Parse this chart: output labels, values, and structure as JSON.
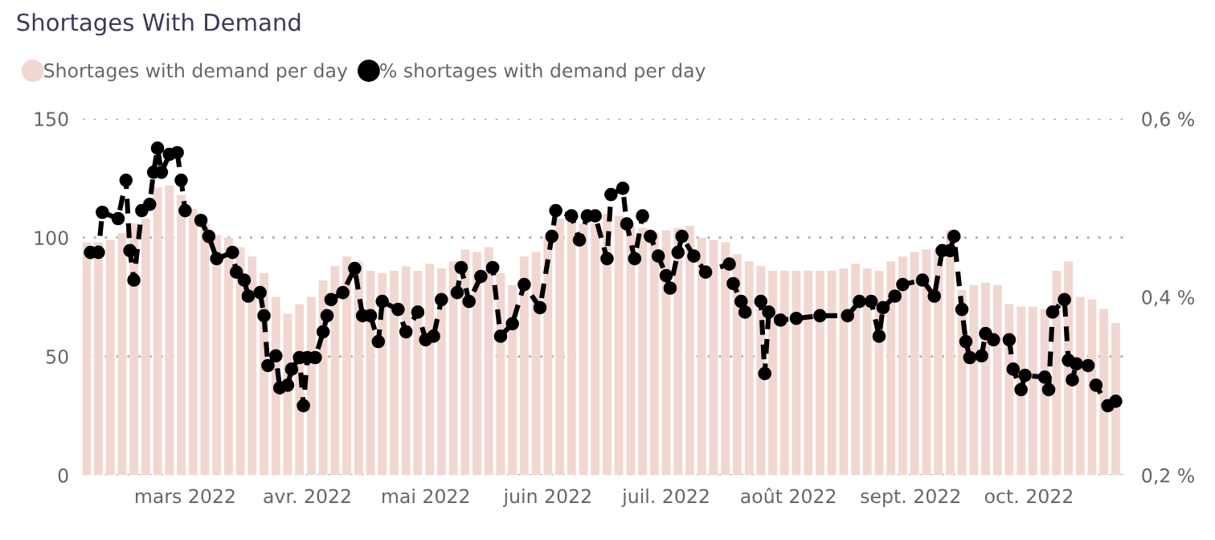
{
  "chart_data": {
    "type": "bar",
    "title": "Shortages With Demand",
    "xlim": [
      "2022-02-03",
      "2022-10-26"
    ],
    "xticks": [
      {
        "value": "2022-03-01",
        "label": "mars 2022"
      },
      {
        "value": "2022-04-01",
        "label": "avr. 2022"
      },
      {
        "value": "2022-05-01",
        "label": "mai 2022"
      },
      {
        "value": "2022-06-01",
        "label": "juin 2022"
      },
      {
        "value": "2022-07-01",
        "label": "juil. 2022"
      },
      {
        "value": "2022-08-01",
        "label": "août 2022"
      },
      {
        "value": "2022-09-01",
        "label": "sept. 2022"
      },
      {
        "value": "2022-10-01",
        "label": "oct. 2022"
      }
    ],
    "ylim": [
      0,
      150
    ],
    "yticks": [
      0,
      50,
      100,
      150
    ],
    "y2lim": [
      0.2,
      0.6
    ],
    "y2ticks": [
      {
        "value": 0.2,
        "label": "0,2 %"
      },
      {
        "value": 0.4,
        "label": "0,4 %"
      },
      {
        "value": 0.6,
        "label": "0,6 %"
      }
    ],
    "grid": "y",
    "legend": "top left",
    "series": [
      {
        "name": "Shortages with demand per day",
        "color": "#f2d6d0",
        "x": [
          "2022-02-04",
          "2022-02-07",
          "2022-02-10",
          "2022-02-13",
          "2022-02-16",
          "2022-02-19",
          "2022-02-22",
          "2022-02-25",
          "2022-02-28",
          "2022-03-03",
          "2022-03-06",
          "2022-03-09",
          "2022-03-12",
          "2022-03-15",
          "2022-03-18",
          "2022-03-21",
          "2022-03-24",
          "2022-03-27",
          "2022-03-30",
          "2022-04-02",
          "2022-04-05",
          "2022-04-08",
          "2022-04-11",
          "2022-04-14",
          "2022-04-17",
          "2022-04-20",
          "2022-04-23",
          "2022-04-26",
          "2022-04-29",
          "2022-05-02",
          "2022-05-05",
          "2022-05-08",
          "2022-05-11",
          "2022-05-14",
          "2022-05-17",
          "2022-05-20",
          "2022-05-23",
          "2022-05-26",
          "2022-05-29",
          "2022-06-01",
          "2022-06-04",
          "2022-06-07",
          "2022-06-10",
          "2022-06-13",
          "2022-06-16",
          "2022-06-19",
          "2022-06-22",
          "2022-06-25",
          "2022-06-28",
          "2022-07-01",
          "2022-07-04",
          "2022-07-07",
          "2022-07-10",
          "2022-07-13",
          "2022-07-16",
          "2022-07-19",
          "2022-07-22",
          "2022-07-25",
          "2022-07-28",
          "2022-07-31",
          "2022-08-03",
          "2022-08-06",
          "2022-08-09",
          "2022-08-12",
          "2022-08-15",
          "2022-08-18",
          "2022-08-21",
          "2022-08-24",
          "2022-08-27",
          "2022-08-30",
          "2022-09-02",
          "2022-09-05",
          "2022-09-08",
          "2022-09-11",
          "2022-09-14",
          "2022-09-17",
          "2022-09-20",
          "2022-09-23",
          "2022-09-26",
          "2022-09-29",
          "2022-10-02",
          "2022-10-05",
          "2022-10-08",
          "2022-10-11",
          "2022-10-14",
          "2022-10-17",
          "2022-10-20",
          "2022-10-23"
        ],
        "values": [
          98,
          98,
          99,
          102,
          106,
          108,
          121,
          122,
          118,
          112,
          106,
          101,
          100,
          96,
          92,
          85,
          75,
          68,
          72,
          75,
          82,
          88,
          92,
          90,
          86,
          85,
          86,
          88,
          86,
          89,
          87,
          90,
          95,
          94,
          96,
          85,
          80,
          92,
          94,
          100,
          108,
          107,
          106,
          106,
          110,
          109,
          105,
          104,
          102,
          103,
          104,
          105,
          100,
          99,
          98,
          93,
          90,
          88,
          86,
          86,
          86,
          86,
          86,
          86,
          87,
          89,
          87,
          86,
          90,
          92,
          94,
          95,
          95,
          103,
          78,
          80,
          81,
          80,
          72,
          71,
          71,
          70,
          86,
          90,
          75,
          74,
          70,
          64
        ]
      },
      {
        "name": "% shortages with demand per day",
        "type": "line",
        "axis": "y2",
        "color": "#000000",
        "marker": "circle",
        "line_style": "dashed",
        "x": [
          "2022-02-05",
          "2022-02-07",
          "2022-02-08",
          "2022-02-12",
          "2022-02-14",
          "2022-02-15",
          "2022-02-16",
          "2022-02-18",
          "2022-02-20",
          "2022-02-21",
          "2022-02-22",
          "2022-02-23",
          "2022-02-25",
          "2022-02-27",
          "2022-02-28",
          "2022-03-01",
          "2022-03-05",
          "2022-03-07",
          "2022-03-09",
          "2022-03-13",
          "2022-03-14",
          "2022-03-16",
          "2022-03-17",
          "2022-03-20",
          "2022-03-21",
          "2022-03-22",
          "2022-03-24",
          "2022-03-25",
          "2022-03-27",
          "2022-03-28",
          "2022-03-30",
          "2022-03-31",
          "2022-04-01",
          "2022-04-03",
          "2022-04-05",
          "2022-04-06",
          "2022-04-07",
          "2022-04-10",
          "2022-04-13",
          "2022-04-15",
          "2022-04-17",
          "2022-04-19",
          "2022-04-20",
          "2022-04-24",
          "2022-04-26",
          "2022-04-29",
          "2022-05-01",
          "2022-05-03",
          "2022-05-05",
          "2022-05-09",
          "2022-05-10",
          "2022-05-12",
          "2022-05-15",
          "2022-05-18",
          "2022-05-20",
          "2022-05-23",
          "2022-05-26",
          "2022-05-30",
          "2022-06-02",
          "2022-06-03",
          "2022-06-07",
          "2022-06-09",
          "2022-06-11",
          "2022-06-13",
          "2022-06-16",
          "2022-06-17",
          "2022-06-20",
          "2022-06-21",
          "2022-06-23",
          "2022-06-25",
          "2022-06-27",
          "2022-06-29",
          "2022-07-01",
          "2022-07-02",
          "2022-07-04",
          "2022-07-05",
          "2022-07-08",
          "2022-07-11",
          "2022-07-17",
          "2022-07-18",
          "2022-07-20",
          "2022-07-21",
          "2022-07-25",
          "2022-07-26",
          "2022-07-27",
          "2022-07-30",
          "2022-08-03",
          "2022-08-09",
          "2022-08-16",
          "2022-08-19",
          "2022-08-22",
          "2022-08-24",
          "2022-08-25",
          "2022-08-28",
          "2022-08-30",
          "2022-09-04",
          "2022-09-07",
          "2022-09-09",
          "2022-09-11",
          "2022-09-12",
          "2022-09-14",
          "2022-09-15",
          "2022-09-16",
          "2022-09-19",
          "2022-09-20",
          "2022-09-22",
          "2022-09-26",
          "2022-09-27",
          "2022-09-29",
          "2022-09-30",
          "2022-10-05",
          "2022-10-06",
          "2022-10-07",
          "2022-10-10",
          "2022-10-11",
          "2022-10-12",
          "2022-10-13",
          "2022-10-16",
          "2022-10-18",
          "2022-10-21",
          "2022-10-23"
        ],
        "values": [
          0.45,
          0.45,
          0.495,
          0.488,
          0.531,
          0.452,
          0.419,
          0.497,
          0.504,
          0.54,
          0.567,
          0.54,
          0.56,
          0.562,
          0.531,
          0.497,
          0.486,
          0.468,
          0.443,
          0.45,
          0.428,
          0.419,
          0.401,
          0.405,
          0.379,
          0.323,
          0.334,
          0.298,
          0.301,
          0.319,
          0.332,
          0.278,
          0.332,
          0.332,
          0.361,
          0.379,
          0.397,
          0.405,
          0.432,
          0.379,
          0.379,
          0.35,
          0.395,
          0.386,
          0.361,
          0.383,
          0.352,
          0.356,
          0.397,
          0.405,
          0.433,
          0.395,
          0.423,
          0.433,
          0.356,
          0.37,
          0.414,
          0.388,
          0.468,
          0.497,
          0.491,
          0.464,
          0.491,
          0.491,
          0.443,
          0.515,
          0.522,
          0.482,
          0.443,
          0.491,
          0.468,
          0.446,
          0.424,
          0.41,
          0.45,
          0.468,
          0.446,
          0.428,
          0.437,
          0.415,
          0.395,
          0.383,
          0.395,
          0.314,
          0.383,
          0.374,
          0.376,
          0.379,
          0.379,
          0.395,
          0.395,
          0.356,
          0.388,
          0.401,
          0.414,
          0.419,
          0.401,
          0.452,
          0.452,
          0.468,
          0.386,
          0.35,
          0.332,
          0.334,
          0.359,
          0.352,
          0.352,
          0.319,
          0.296,
          0.312,
          0.31,
          0.296,
          0.383,
          0.397,
          0.329,
          0.307,
          0.325,
          0.323,
          0.301,
          0.278,
          0.283
        ]
      }
    ]
  }
}
